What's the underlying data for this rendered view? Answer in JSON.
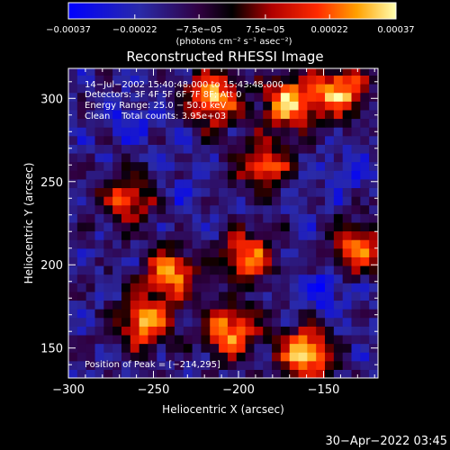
{
  "chart_data": {
    "type": "heatmap",
    "title": "Reconstructed RHESSI Image",
    "xlabel": "Heliocentric X (arcsec)",
    "ylabel": "Heliocentric Y (arcsec)",
    "xlim": [
      -300,
      -118
    ],
    "ylim": [
      132,
      318
    ],
    "x_ticks": [
      -300,
      -250,
      -200,
      -150
    ],
    "x_tick_labels": [
      "−300",
      "−250",
      "−200",
      "−150"
    ],
    "y_ticks": [
      150,
      200,
      250,
      300
    ],
    "y_tick_labels": [
      "150",
      "200",
      "250",
      "300"
    ],
    "colorbar": {
      "range": [
        -0.00037,
        0.00037
      ],
      "ticks": [
        -0.00037,
        -0.00022,
        -7.5e-05,
        7.5e-05,
        0.00022,
        0.00037
      ],
      "tick_labels": [
        "−0.00037",
        "−0.00022",
        "−7.5e−05",
        "7.5e−05",
        "0.00022",
        "0.00037"
      ],
      "unit_label": "(photons cm⁻² s⁻¹ asec⁻²)"
    },
    "annotations": [
      "14−Jul−2002 15:40:48.000 to 15:43:48.000",
      "Detectors: 3F 4F 5F 6F 7F 8F; Att 0",
      "Energy Range: 25.0 − 50.0 keV",
      "Clean    Total counts: 3.95e+03"
    ],
    "peak_label": "Position of Peak = [−214,295]",
    "bright_regions": [
      {
        "x": -215,
        "y": 300,
        "value": 0.00033
      },
      {
        "x": -170,
        "y": 298,
        "value": 0.00031
      },
      {
        "x": -140,
        "y": 305,
        "value": 0.0003
      },
      {
        "x": -160,
        "y": 147,
        "value": 0.00034
      },
      {
        "x": -205,
        "y": 160,
        "value": 0.00029
      },
      {
        "x": -255,
        "y": 165,
        "value": 0.00027
      },
      {
        "x": -240,
        "y": 195,
        "value": 0.00026
      },
      {
        "x": -195,
        "y": 205,
        "value": 0.00025
      },
      {
        "x": -185,
        "y": 260,
        "value": 0.00022
      },
      {
        "x": -265,
        "y": 240,
        "value": 0.0002
      },
      {
        "x": -130,
        "y": 210,
        "value": 0.00021
      }
    ],
    "dim_regions": [
      {
        "x": -150,
        "y": 185,
        "value": -0.00028
      },
      {
        "x": -265,
        "y": 285,
        "value": -0.00024
      },
      {
        "x": -135,
        "y": 255,
        "value": -0.00022
      },
      {
        "x": -235,
        "y": 240,
        "value": -0.0002
      }
    ]
  },
  "footer": {
    "timestamp": "30−Apr−2022 03:45"
  }
}
